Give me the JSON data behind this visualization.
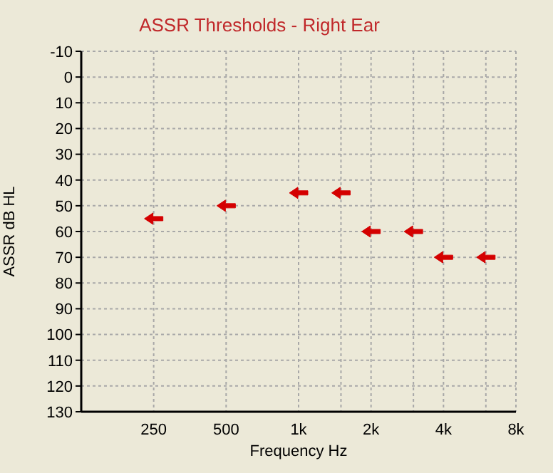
{
  "chart_data": {
    "type": "scatter",
    "title": "ASSR Thresholds - Right Ear",
    "xlabel": "Frequency Hz",
    "ylabel": "ASSR dB HL",
    "x": [
      250,
      500,
      1000,
      1500,
      2000,
      3000,
      4000,
      6000
    ],
    "series": [
      {
        "color": "#d40000",
        "values": [
          55,
          50,
          45,
          45,
          60,
          60,
          70,
          70
        ]
      }
    ],
    "log": "x",
    "xlim": [
      125,
      8000
    ],
    "xticks": [
      250,
      500,
      {
        "value": 1000,
        "label": "1k"
      },
      {
        "value": 1500,
        "label": null
      },
      {
        "value": 2000,
        "label": "2k"
      },
      {
        "value": 3000,
        "label": null
      },
      {
        "value": 4000,
        "label": "4k"
      },
      {
        "value": 6000,
        "label": null
      },
      {
        "value": 8000,
        "label": "8k"
      }
    ],
    "ylim": [
      130,
      -10
    ],
    "yticks": [
      -10,
      0,
      10,
      20,
      30,
      40,
      50,
      60,
      70,
      80,
      90,
      100,
      110,
      120,
      130
    ],
    "grid": true
  }
}
